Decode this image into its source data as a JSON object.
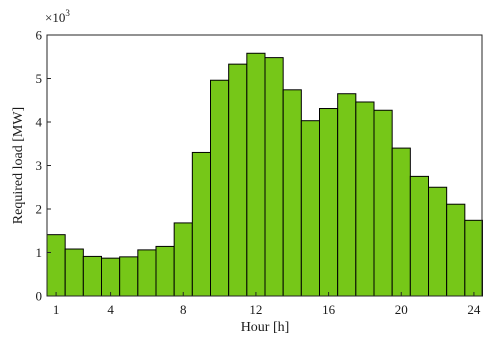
{
  "chart_data": {
    "type": "bar",
    "xlabel": "Hour [h]",
    "ylabel": "Required load [MW]",
    "y_multiplier": "×10",
    "y_multiplier_exponent": "3",
    "x": [
      1,
      2,
      3,
      4,
      5,
      6,
      7,
      8,
      9,
      10,
      11,
      12,
      13,
      14,
      15,
      16,
      17,
      18,
      19,
      20,
      21,
      22,
      23,
      24
    ],
    "values": [
      1410,
      1080,
      910,
      870,
      900,
      1060,
      1140,
      1680,
      3300,
      4960,
      5330,
      5580,
      5480,
      4740,
      4030,
      4310,
      4650,
      4460,
      4270,
      3400,
      2750,
      2500,
      2110,
      1740
    ],
    "xticks": [
      1,
      4,
      8,
      12,
      16,
      20,
      24
    ],
    "xtick_labels": [
      "1",
      "4",
      "8",
      "12",
      "16",
      "20",
      "24"
    ],
    "yticks": [
      0,
      1000,
      2000,
      3000,
      4000,
      5000,
      6000
    ],
    "ytick_labels": [
      "0",
      "1",
      "2",
      "3",
      "4",
      "5",
      "6"
    ],
    "xlim": [
      0.5,
      24.5
    ],
    "ylim": [
      0,
      6000
    ],
    "grid": false,
    "bar_color": "#76c718",
    "edge_color": "#000000"
  }
}
